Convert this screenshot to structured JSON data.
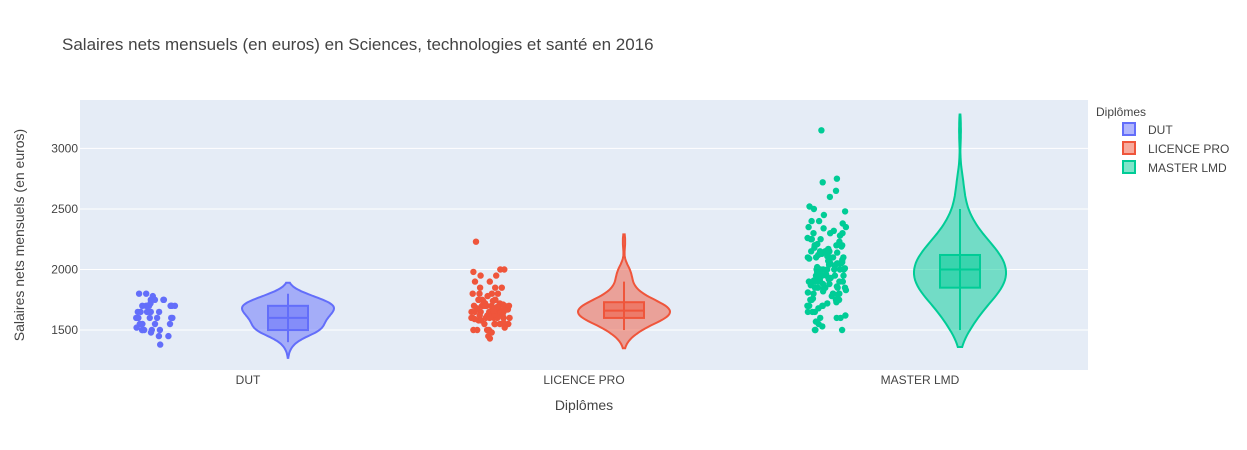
{
  "chart_data": {
    "type": "violin",
    "title": "Salaires nets mensuels (en euros) en Sciences, technologies et santé en 2016",
    "xlabel": "Diplômes",
    "ylabel": "Salaires nets mensuels (en euros)",
    "categories": [
      "DUT",
      "LICENCE PRO",
      "MASTER LMD"
    ],
    "yticks": [
      1500,
      2000,
      2500,
      3000
    ],
    "ylim": [
      1170,
      3400
    ],
    "grid": true,
    "legend": {
      "title": "Diplômes",
      "placement": "top-right"
    },
    "series": [
      {
        "name": "DUT",
        "color": "#636efa",
        "box": {
          "q1": 1500,
          "median": 1600,
          "q3": 1700,
          "whisker_low": 1400,
          "whisker_high": 1800
        },
        "violin_range": [
          1270,
          1890
        ],
        "points": [
          1700,
          1700,
          1650,
          1750,
          1700,
          1650,
          1600,
          1550,
          1500,
          1500,
          1550,
          1600,
          1650,
          1700,
          1750,
          1800,
          1800,
          1750,
          1700,
          1650,
          1600,
          1550,
          1500,
          1450,
          1500,
          1550,
          1600,
          1700,
          1750,
          1650,
          1600,
          1500,
          1480,
          1520,
          1700,
          1650,
          1380,
          1450,
          1600,
          1700,
          1720,
          1780
        ]
      },
      {
        "name": "LICENCE PRO",
        "color": "#ef553b",
        "box": {
          "q1": 1600,
          "median": 1660,
          "q3": 1730,
          "whisker_low": 1500,
          "whisker_high": 1900
        },
        "violin_range": [
          1350,
          2290
        ],
        "points": [
          2230,
          2000,
          2000,
          1980,
          1950,
          1900,
          1850,
          1850,
          1800,
          1800,
          1800,
          1780,
          1750,
          1750,
          1750,
          1720,
          1700,
          1700,
          1700,
          1700,
          1700,
          1680,
          1650,
          1650,
          1650,
          1650,
          1650,
          1650,
          1620,
          1600,
          1600,
          1600,
          1600,
          1600,
          1600,
          1600,
          1580,
          1550,
          1550,
          1550,
          1550,
          1520,
          1500,
          1500,
          1500,
          1500,
          1480,
          1450,
          1430,
          1700,
          1700,
          1650,
          1650,
          1600,
          1750,
          1800,
          1700,
          1650,
          1600,
          1550,
          1680,
          1720,
          1620,
          1660,
          1740,
          1560,
          1610,
          1690,
          1710,
          1640,
          1590,
          1630,
          1670,
          1750,
          1850,
          1900,
          1950,
          1580,
          1620,
          1660,
          1700,
          1740
        ]
      },
      {
        "name": "MASTER LMD",
        "color": "#00cc96",
        "box": {
          "q1": 1850,
          "median": 2000,
          "q3": 2120,
          "whisker_low": 1500,
          "whisker_high": 2500
        },
        "violin_range": [
          1360,
          3280
        ],
        "points": [
          3150,
          2750,
          2720,
          2650,
          2600,
          2520,
          2500,
          2480,
          2450,
          2400,
          2400,
          2380,
          2350,
          2350,
          2300,
          2300,
          2300,
          2280,
          2250,
          2250,
          2250,
          2200,
          2200,
          2200,
          2200,
          2180,
          2150,
          2150,
          2150,
          2150,
          2100,
          2100,
          2100,
          2100,
          2100,
          2080,
          2050,
          2050,
          2050,
          2050,
          2050,
          2000,
          2000,
          2000,
          2000,
          2000,
          2000,
          2000,
          1980,
          1950,
          1950,
          1950,
          1950,
          1950,
          1920,
          1900,
          1900,
          1900,
          1900,
          1900,
          1900,
          1880,
          1850,
          1850,
          1850,
          1850,
          1850,
          1820,
          1800,
          1800,
          1800,
          1800,
          1800,
          1780,
          1750,
          1750,
          1750,
          1750,
          1720,
          1700,
          1700,
          1700,
          1700,
          1650,
          1650,
          1650,
          1600,
          1600,
          1600,
          1550,
          1500,
          1500,
          1500,
          2020,
          2040,
          2060,
          2080,
          2120,
          2140,
          2160,
          1960,
          1940,
          1920,
          1880,
          1860,
          1840,
          2010,
          2030,
          2070,
          2090,
          2110,
          1990,
          1970,
          1930,
          1910,
          1870,
          2130,
          2170,
          2190,
          2210,
          2230,
          2260,
          2320,
          2340,
          1830,
          1810,
          1790,
          1760,
          1730,
          1680,
          1620,
          1570,
          1530
        ]
      }
    ]
  }
}
